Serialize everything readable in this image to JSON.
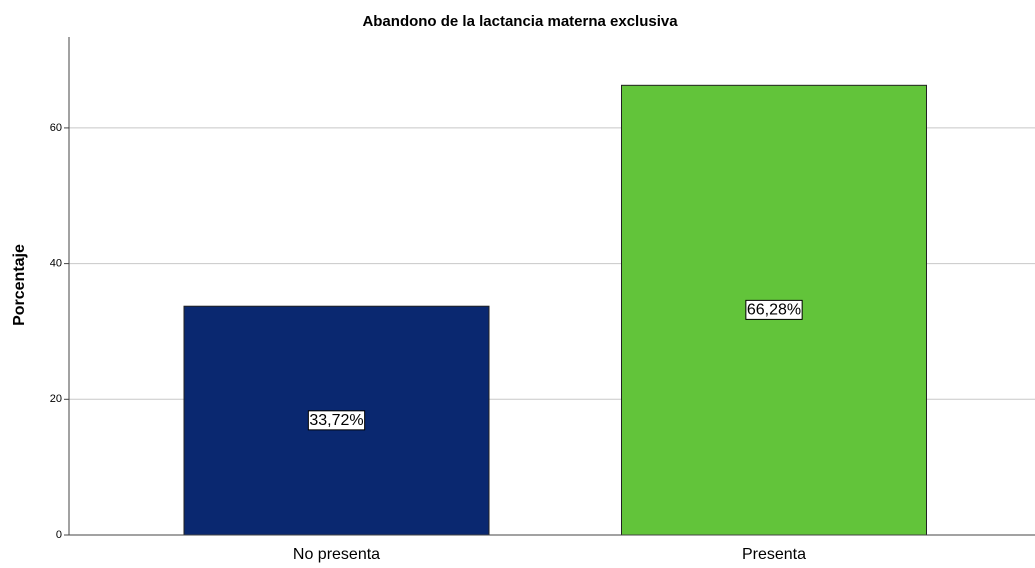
{
  "chart_data": {
    "type": "bar",
    "title": "Abandono de la lactancia materna exclusiva",
    "ylabel": "Porcentaje",
    "categories": [
      "No presenta",
      "Presenta"
    ],
    "values": [
      33.72,
      66.28
    ],
    "value_labels": [
      "33,72%",
      "66,28%"
    ],
    "colors": [
      "#0a2870",
      "#62c43a"
    ],
    "ylim": [
      0,
      73.4
    ],
    "yticks": [
      0,
      20,
      40,
      60
    ],
    "grid": true
  }
}
